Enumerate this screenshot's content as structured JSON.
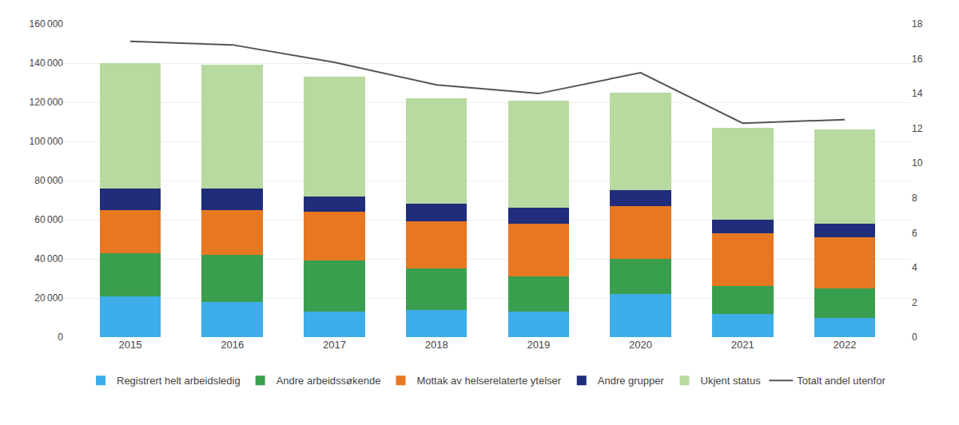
{
  "chart_data": {
    "type": "bar",
    "stacked": true,
    "grid": true,
    "legend": "bottom",
    "categories": [
      "2015",
      "2016",
      "2017",
      "2018",
      "2019",
      "2020",
      "2021",
      "2022"
    ],
    "series": [
      {
        "name": "Registrert helt arbeidsledig",
        "type": "bar",
        "color": "#3daee9",
        "values": [
          21000,
          18000,
          13000,
          14000,
          13000,
          22000,
          12000,
          10000
        ]
      },
      {
        "name": "Andre arbeidssøkende",
        "type": "bar",
        "color": "#3a9e4f",
        "values": [
          22000,
          24000,
          26000,
          21000,
          18000,
          18000,
          14000,
          15000
        ]
      },
      {
        "name": "Mottak av helserelaterte ytelser",
        "type": "bar",
        "color": "#e87722",
        "values": [
          22000,
          23000,
          25000,
          24000,
          27000,
          27000,
          27000,
          26000
        ]
      },
      {
        "name": "Andre grupper",
        "type": "bar",
        "color": "#1f2d7b",
        "values": [
          11000,
          11000,
          8000,
          9000,
          8000,
          8000,
          7000,
          7000
        ]
      },
      {
        "name": "Ukjent status",
        "type": "bar",
        "color": "#b8d9a0",
        "values": [
          64000,
          63000,
          61000,
          54000,
          55000,
          50000,
          47000,
          48000
        ]
      },
      {
        "name": "Totalt andel utenfor",
        "type": "line",
        "axis": "y2",
        "color": "#555555",
        "values": [
          17.0,
          16.8,
          15.8,
          14.5,
          14.0,
          15.2,
          12.3,
          12.5
        ]
      }
    ],
    "ylim": [
      0,
      160000
    ],
    "yticks": [
      0,
      {
        "value": 20000,
        "label": "20 000"
      },
      {
        "value": 40000,
        "label": "40 000"
      },
      {
        "value": 60000,
        "label": "60 000"
      },
      {
        "value": 80000,
        "label": "80 000"
      },
      {
        "value": 100000,
        "label": "100 000"
      },
      {
        "value": 120000,
        "label": "120 000"
      },
      {
        "value": 140000,
        "label": "140 000"
      },
      {
        "value": 160000,
        "label": "160 000"
      }
    ],
    "y2lim": [
      0,
      18
    ],
    "y2ticks": [
      0,
      2,
      4,
      6,
      8,
      10,
      12,
      14,
      16,
      18
    ]
  }
}
